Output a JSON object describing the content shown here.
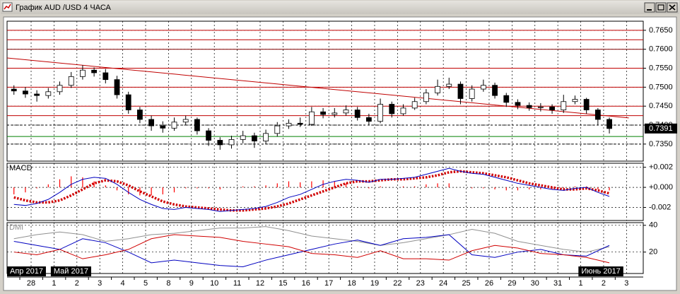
{
  "window": {
    "title": "График AUD /USD  4 ЧАСА"
  },
  "chart_data": [
    {
      "type": "candlestick",
      "xlim": [
        -1.05,
        26.73
      ],
      "ylim": [
        0.7305,
        0.7674
      ],
      "yticks": [
        {
          "value": 0.765,
          "label": "0.7650"
        },
        {
          "value": 0.76,
          "label": "0.7600"
        },
        {
          "value": 0.755,
          "label": "0.7550"
        },
        {
          "value": 0.75,
          "label": "0.7500"
        },
        {
          "value": 0.745,
          "label": "0.7450"
        },
        {
          "value": 0.74,
          "label": "0.7400"
        },
        {
          "value": 0.735,
          "label": "0.7350"
        }
      ],
      "grid": true,
      "up_color": "#ffffff",
      "down_color": "#000000",
      "x": [
        -0.75,
        -0.25,
        0.25,
        0.75,
        1.25,
        1.75,
        2.25,
        2.75,
        3.25,
        3.75,
        4.25,
        4.75,
        5.25,
        5.75,
        6.25,
        6.75,
        7.25,
        7.75,
        8.25,
        8.75,
        9.25,
        9.75,
        10.25,
        10.75,
        11.25,
        11.75,
        12.25,
        12.75,
        13.25,
        13.75,
        14.25,
        14.75,
        15.25,
        15.75,
        16.25,
        16.75,
        17.25,
        17.75,
        18.25,
        18.75,
        19.25,
        19.75,
        20.25,
        20.75,
        21.25,
        21.75,
        22.25,
        22.75,
        23.25,
        23.75,
        24.25,
        24.75,
        25.25
      ],
      "open": [
        0.7495,
        0.749,
        0.7482,
        0.7478,
        0.7488,
        0.7505,
        0.7528,
        0.7545,
        0.7538,
        0.752,
        0.748,
        0.744,
        0.7415,
        0.7398,
        0.7392,
        0.7408,
        0.7415,
        0.7385,
        0.736,
        0.7348,
        0.7362,
        0.7372,
        0.7358,
        0.7378,
        0.7398,
        0.7405,
        0.7402,
        0.7435,
        0.7428,
        0.7432,
        0.744,
        0.742,
        0.741,
        0.7455,
        0.743,
        0.7445,
        0.7462,
        0.7485,
        0.7502,
        0.7508,
        0.747,
        0.7495,
        0.7505,
        0.7478,
        0.746,
        0.7452,
        0.7446,
        0.7448,
        0.744,
        0.7462,
        0.7468,
        0.744,
        0.7415
      ],
      "high": [
        0.7505,
        0.75,
        0.7492,
        0.7498,
        0.7515,
        0.754,
        0.7558,
        0.7552,
        0.7548,
        0.753,
        0.7488,
        0.7448,
        0.7425,
        0.741,
        0.742,
        0.7425,
        0.742,
        0.7392,
        0.7368,
        0.7372,
        0.7385,
        0.738,
        0.7388,
        0.7408,
        0.7415,
        0.742,
        0.7448,
        0.7445,
        0.7445,
        0.7452,
        0.7448,
        0.743,
        0.747,
        0.7462,
        0.7455,
        0.7472,
        0.7495,
        0.752,
        0.7525,
        0.7515,
        0.7505,
        0.752,
        0.7512,
        0.7485,
        0.7468,
        0.746,
        0.7458,
        0.7455,
        0.748,
        0.7478,
        0.7472,
        0.7445,
        0.742
      ],
      "low": [
        0.748,
        0.7472,
        0.7462,
        0.747,
        0.748,
        0.7498,
        0.752,
        0.7528,
        0.751,
        0.747,
        0.743,
        0.7405,
        0.7385,
        0.738,
        0.7385,
        0.74,
        0.7375,
        0.7345,
        0.7335,
        0.7338,
        0.7352,
        0.734,
        0.735,
        0.737,
        0.739,
        0.7395,
        0.7398,
        0.7418,
        0.742,
        0.7425,
        0.7412,
        0.74,
        0.7405,
        0.742,
        0.7425,
        0.744,
        0.7455,
        0.7478,
        0.7495,
        0.7455,
        0.7462,
        0.7488,
        0.747,
        0.7448,
        0.7442,
        0.7438,
        0.7436,
        0.743,
        0.7432,
        0.7455,
        0.743,
        0.74,
        0.7378
      ],
      "close": [
        0.749,
        0.7482,
        0.7478,
        0.7488,
        0.7505,
        0.7528,
        0.7545,
        0.7538,
        0.752,
        0.748,
        0.744,
        0.7415,
        0.7398,
        0.7392,
        0.7408,
        0.7415,
        0.7385,
        0.736,
        0.7348,
        0.7362,
        0.7372,
        0.7358,
        0.7378,
        0.7398,
        0.7405,
        0.7402,
        0.7435,
        0.7428,
        0.7432,
        0.744,
        0.742,
        0.741,
        0.7455,
        0.743,
        0.7445,
        0.7462,
        0.7485,
        0.7502,
        0.7508,
        0.747,
        0.7495,
        0.7505,
        0.7478,
        0.746,
        0.7452,
        0.7446,
        0.7448,
        0.744,
        0.7462,
        0.7468,
        0.744,
        0.7415,
        0.7391
      ],
      "levels": [
        {
          "value": 0.765,
          "color": "#c00000"
        },
        {
          "value": 0.7625,
          "color": "#c00000"
        },
        {
          "value": 0.76,
          "color": "#800000"
        },
        {
          "value": 0.755,
          "color": "#c00000"
        },
        {
          "value": 0.75,
          "color": "#c00000"
        },
        {
          "value": 0.745,
          "color": "#c00000"
        },
        {
          "value": 0.7425,
          "color": "#c00000"
        },
        {
          "value": 0.74,
          "color": "#000000",
          "dash": true
        },
        {
          "value": 0.737,
          "color": "#008000"
        },
        {
          "value": 0.735,
          "color": "#000000",
          "dash": true
        }
      ],
      "trendline": {
        "x": [
          -1.05,
          26.1
        ],
        "values": [
          0.7577,
          0.7419
        ],
        "color": "#c00000"
      },
      "last": 0.7391
    },
    {
      "type": "macd",
      "title": "MACD",
      "xlim": [
        -1.05,
        26.73
      ],
      "ylim": [
        -0.0033,
        0.0024
      ],
      "yticks": [
        {
          "value": 0.002,
          "label": "+0.002"
        },
        {
          "value": 0,
          "label": "+0.000"
        },
        {
          "value": -0.002,
          "label": "-0.002"
        }
      ],
      "x": [
        -0.75,
        -0.25,
        0.25,
        0.75,
        1.25,
        1.75,
        2.25,
        2.75,
        3.25,
        3.75,
        4.25,
        4.75,
        5.25,
        5.75,
        6.25,
        6.75,
        7.25,
        7.75,
        8.25,
        8.75,
        9.25,
        9.75,
        10.25,
        10.75,
        11.25,
        11.75,
        12.25,
        12.75,
        13.25,
        13.75,
        14.25,
        14.75,
        15.25,
        15.75,
        16.25,
        16.75,
        17.25,
        17.75,
        18.25,
        18.75,
        19.25,
        19.75,
        20.25,
        20.75,
        21.25,
        21.75,
        22.25,
        22.75,
        23.25,
        23.75,
        24.25,
        24.75,
        25.25
      ],
      "histogram": {
        "color": "#ff0000",
        "values": [
          -0.0007,
          -0.0005,
          -0.0001,
          0.0003,
          0.0008,
          0.0011,
          0.001,
          0.0006,
          0.0002,
          -0.0003,
          -0.0007,
          -0.0008,
          -0.0008,
          -0.0007,
          -0.0005,
          -0.0001,
          -0.0001,
          -0.0001,
          -0.0002,
          0,
          0.0001,
          0.0001,
          0.0002,
          0.0004,
          0.0006,
          0.0005,
          0.0006,
          0.0007,
          0.0006,
          0.0004,
          0.0001,
          -0.0001,
          0.0001,
          0,
          0.0001,
          0.0001,
          0.0003,
          0.0004,
          0.0004,
          0,
          -0.0001,
          -0.0001,
          -0.0002,
          -0.0003,
          -0.0003,
          -0.0002,
          -0.0002,
          -0.0002,
          -0.0001,
          0.0001,
          0.0001,
          -0.0002,
          -0.0003
        ]
      },
      "series": [
        {
          "color": "#d00000",
          "dotted": true,
          "values": [
            -0.001,
            -0.0013,
            -0.0015,
            -0.0015,
            -0.0013,
            -0.0008,
            -0.0002,
            0.0004,
            0.0007,
            0.0006,
            0.0002,
            -0.0004,
            -0.0009,
            -0.0014,
            -0.0017,
            -0.0019,
            -0.002,
            -0.0021,
            -0.0022,
            -0.0023,
            -0.0023,
            -0.0022,
            -0.0021,
            -0.0019,
            -0.0016,
            -0.0012,
            -0.0008,
            -0.0004,
            0,
            0.0004,
            0.0006,
            0.0006,
            0.0007,
            0.0008,
            0.0008,
            0.0009,
            0.001,
            0.0012,
            0.0015,
            0.0016,
            0.0015,
            0.0014,
            0.0012,
            0.001,
            0.0007,
            0.0004,
            0.0002,
            0,
            -0.0002,
            -0.0002,
            -0.0001,
            -0.0003,
            -0.0006
          ]
        },
        {
          "color": "#0000c0",
          "values": [
            -0.0017,
            -0.0018,
            -0.0016,
            -0.0012,
            -0.0005,
            0.0003,
            0.0008,
            0.001,
            0.0009,
            0.0003,
            -0.0005,
            -0.0012,
            -0.0017,
            -0.0021,
            -0.0022,
            -0.002,
            -0.0021,
            -0.0022,
            -0.0024,
            -0.0023,
            -0.0022,
            -0.0021,
            -0.0019,
            -0.0015,
            -0.001,
            -0.0007,
            -0.0002,
            0.0003,
            0.0006,
            0.0008,
            0.0007,
            0.0005,
            0.0008,
            0.0008,
            0.0009,
            0.001,
            0.0013,
            0.0016,
            0.0019,
            0.0016,
            0.0014,
            0.0013,
            0.001,
            0.0007,
            0.0004,
            0.0002,
            0,
            -0.0002,
            -0.0003,
            -0.0001,
            0,
            -0.0005,
            -0.0009
          ]
        }
      ]
    },
    {
      "type": "line",
      "title": "DMI",
      "xlim": [
        -1.05,
        26.73
      ],
      "ylim": [
        4,
        42
      ],
      "yticks": [
        40,
        20
      ],
      "x": [
        -0.75,
        0.25,
        1.25,
        2.25,
        3.25,
        4.25,
        5.25,
        6.25,
        7.25,
        8.25,
        9.25,
        10.25,
        11.25,
        12.25,
        13.25,
        14.25,
        15.25,
        16.25,
        17.25,
        18.25,
        19.25,
        20.25,
        21.25,
        22.25,
        23.25,
        24.25,
        25.25
      ],
      "series": [
        {
          "color": "#909090",
          "values": [
            30,
            33,
            35,
            33,
            28,
            30,
            33,
            34,
            36,
            38,
            38,
            39,
            36,
            32,
            30,
            28,
            25,
            27,
            30,
            33,
            37,
            34,
            28,
            25,
            22,
            20,
            24
          ]
        },
        {
          "color": "#0000c0",
          "values": [
            28,
            25,
            22,
            30,
            27,
            20,
            12,
            14,
            12,
            10,
            9,
            14,
            18,
            22,
            26,
            29,
            25,
            30,
            31,
            33,
            18,
            16,
            20,
            22,
            18,
            17,
            25
          ]
        },
        {
          "color": "#d00000",
          "values": [
            20,
            18,
            22,
            15,
            18,
            22,
            30,
            33,
            32,
            31,
            28,
            26,
            24,
            19,
            18,
            16,
            21,
            15,
            15,
            14,
            21,
            25,
            23,
            19,
            18,
            16,
            12
          ]
        }
      ],
      "xticks": [
        {
          "value": 0,
          "label": "28"
        },
        {
          "value": 1,
          "label": "1"
        },
        {
          "value": 2,
          "label": "2"
        },
        {
          "value": 3,
          "label": "3"
        },
        {
          "value": 4,
          "label": "4"
        },
        {
          "value": 5,
          "label": "5"
        },
        {
          "value": 6,
          "label": "8"
        },
        {
          "value": 7,
          "label": "9"
        },
        {
          "value": 8,
          "label": "10"
        },
        {
          "value": 9,
          "label": "11"
        },
        {
          "value": 10,
          "label": "12"
        },
        {
          "value": 11,
          "label": "15"
        },
        {
          "value": 12,
          "label": "16"
        },
        {
          "value": 13,
          "label": "17"
        },
        {
          "value": 14,
          "label": "18"
        },
        {
          "value": 15,
          "label": "19"
        },
        {
          "value": 16,
          "label": "22"
        },
        {
          "value": 17,
          "label": "23"
        },
        {
          "value": 18,
          "label": "24"
        },
        {
          "value": 19,
          "label": "25"
        },
        {
          "value": 20,
          "label": "26"
        },
        {
          "value": 21,
          "label": "29"
        },
        {
          "value": 22,
          "label": "30"
        },
        {
          "value": 23,
          "label": "31"
        },
        {
          "value": 24,
          "label": "1"
        },
        {
          "value": 25,
          "label": "2"
        },
        {
          "value": 26,
          "label": "3"
        }
      ],
      "month_ticks": [
        {
          "value": -1.05,
          "label": "Апр 2017"
        },
        {
          "value": 0.86,
          "label": "Май 2017"
        },
        {
          "value": 23.9,
          "label": "Июнь 2017"
        }
      ]
    }
  ]
}
